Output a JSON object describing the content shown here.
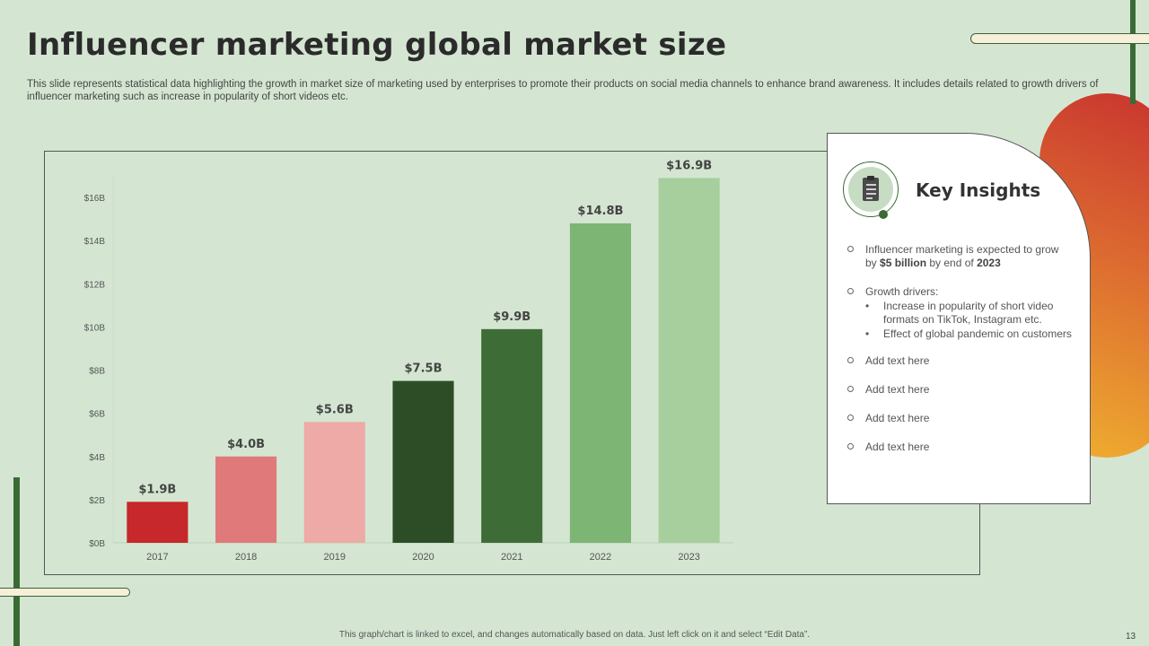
{
  "title": "Influencer marketing global market size",
  "subtitle": "This slide represents statistical data highlighting the growth in market size of marketing used by enterprises to promote their products on social media channels to enhance brand awareness. It includes details related to growth drivers of influencer marketing such as increase in popularity of short videos etc.",
  "chart_data": {
    "type": "bar",
    "title": "",
    "xlabel": "",
    "ylabel": "",
    "categories": [
      "2017",
      "2018",
      "2019",
      "2020",
      "2021",
      "2022",
      "2023"
    ],
    "values": [
      1.9,
      4.0,
      5.6,
      7.5,
      9.9,
      14.8,
      16.9
    ],
    "data_labels": [
      "$1.9B",
      "$4.0B",
      "$5.6B",
      "$7.5B",
      "$9.9B",
      "$14.8B",
      "$16.9B"
    ],
    "bar_colors": [
      "#c6282b",
      "#e07a7a",
      "#eeaaa6",
      "#2d4d27",
      "#3e6c37",
      "#7db574",
      "#a6cf9d"
    ],
    "ylim": [
      0,
      17
    ],
    "yticks": [
      0,
      2,
      4,
      6,
      8,
      10,
      12,
      14,
      16
    ],
    "ytick_labels": [
      "$0B",
      "$2B",
      "$4B",
      "$6B",
      "$8B",
      "$10B",
      "$12B",
      "$14B",
      "$16B"
    ],
    "grid": false,
    "legend": "none"
  },
  "insights": {
    "heading": "Key Insights",
    "icon": "clipboard-list-icon",
    "item1_pre": "Influencer  marketing is expected to grow by ",
    "item1_amount": "$5 billion",
    "item1_mid": " by end of ",
    "item1_year": "2023",
    "item2_heading": "Growth drivers:",
    "item2_bullets": [
      "Increase in popularity of short video formats on TikTok, Instagram etc.",
      "Effect of global pandemic on customers"
    ],
    "placeholders": [
      "Add text here",
      "Add text here",
      "Add text here",
      "Add text here"
    ]
  },
  "footer_note": "This graph/chart is linked to excel, and changes automatically based on data. Just left click on it and select “Edit Data”.",
  "page_number": "13",
  "colors": {
    "background": "#d4e6d2",
    "accent_green": "#3a6b35",
    "gradient_red": "#c8332f",
    "gradient_yellow": "#f0b030"
  }
}
